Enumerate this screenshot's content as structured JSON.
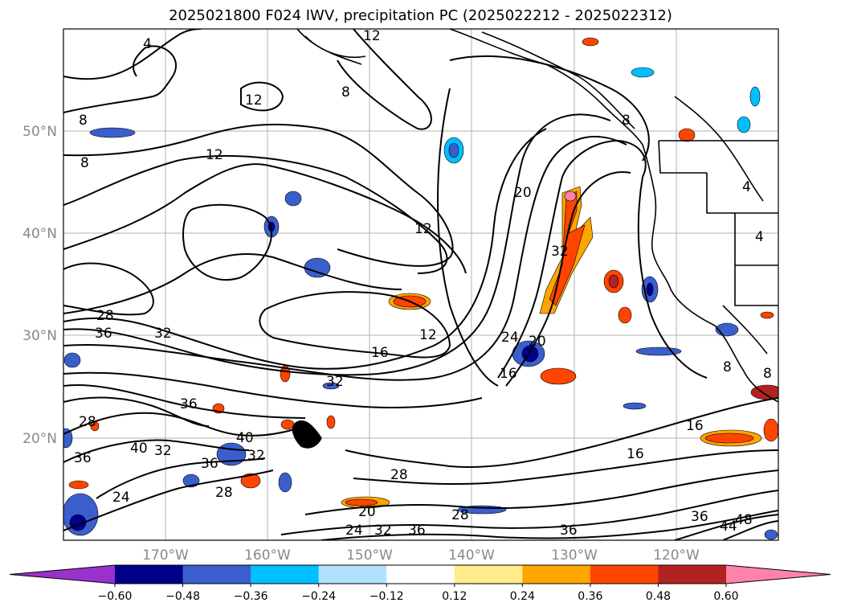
{
  "title": "2025021800 F024 IWV, precipitation PC (2025022212 - 2025022312)",
  "lat_labels": [
    "50°N",
    "40°N",
    "30°N",
    "20°N"
  ],
  "lon_labels": [
    "170°W",
    "160°W",
    "150°W",
    "140°W",
    "130°W",
    "120°W"
  ],
  "colorbar": {
    "ticks": [
      "−0.60",
      "−0.48",
      "−0.36",
      "−0.24",
      "−0.12",
      "0.12",
      "0.24",
      "0.36",
      "0.48",
      "0.60"
    ],
    "colors": [
      "#9932cc",
      "#00008b",
      "#3a5fcd",
      "#00bfff",
      "#b0e2ff",
      "#ffffff",
      "#ffec8b",
      "#ffa500",
      "#ff4500",
      "#b22222",
      "#ff82ab"
    ]
  },
  "contour_labels": [
    "4",
    "12",
    "8",
    "12",
    "8",
    "8",
    "12",
    "20",
    "12",
    "32",
    "28",
    "36",
    "32",
    "12",
    "16",
    "24",
    "20",
    "16",
    "32",
    "36",
    "28",
    "40",
    "32",
    "40",
    "36",
    "36",
    "32",
    "28",
    "28",
    "24",
    "20",
    "24",
    "32",
    "36",
    "28",
    "36",
    "16",
    "16",
    "36",
    "44",
    "48",
    "4",
    "4",
    "8",
    "8",
    "8"
  ]
}
